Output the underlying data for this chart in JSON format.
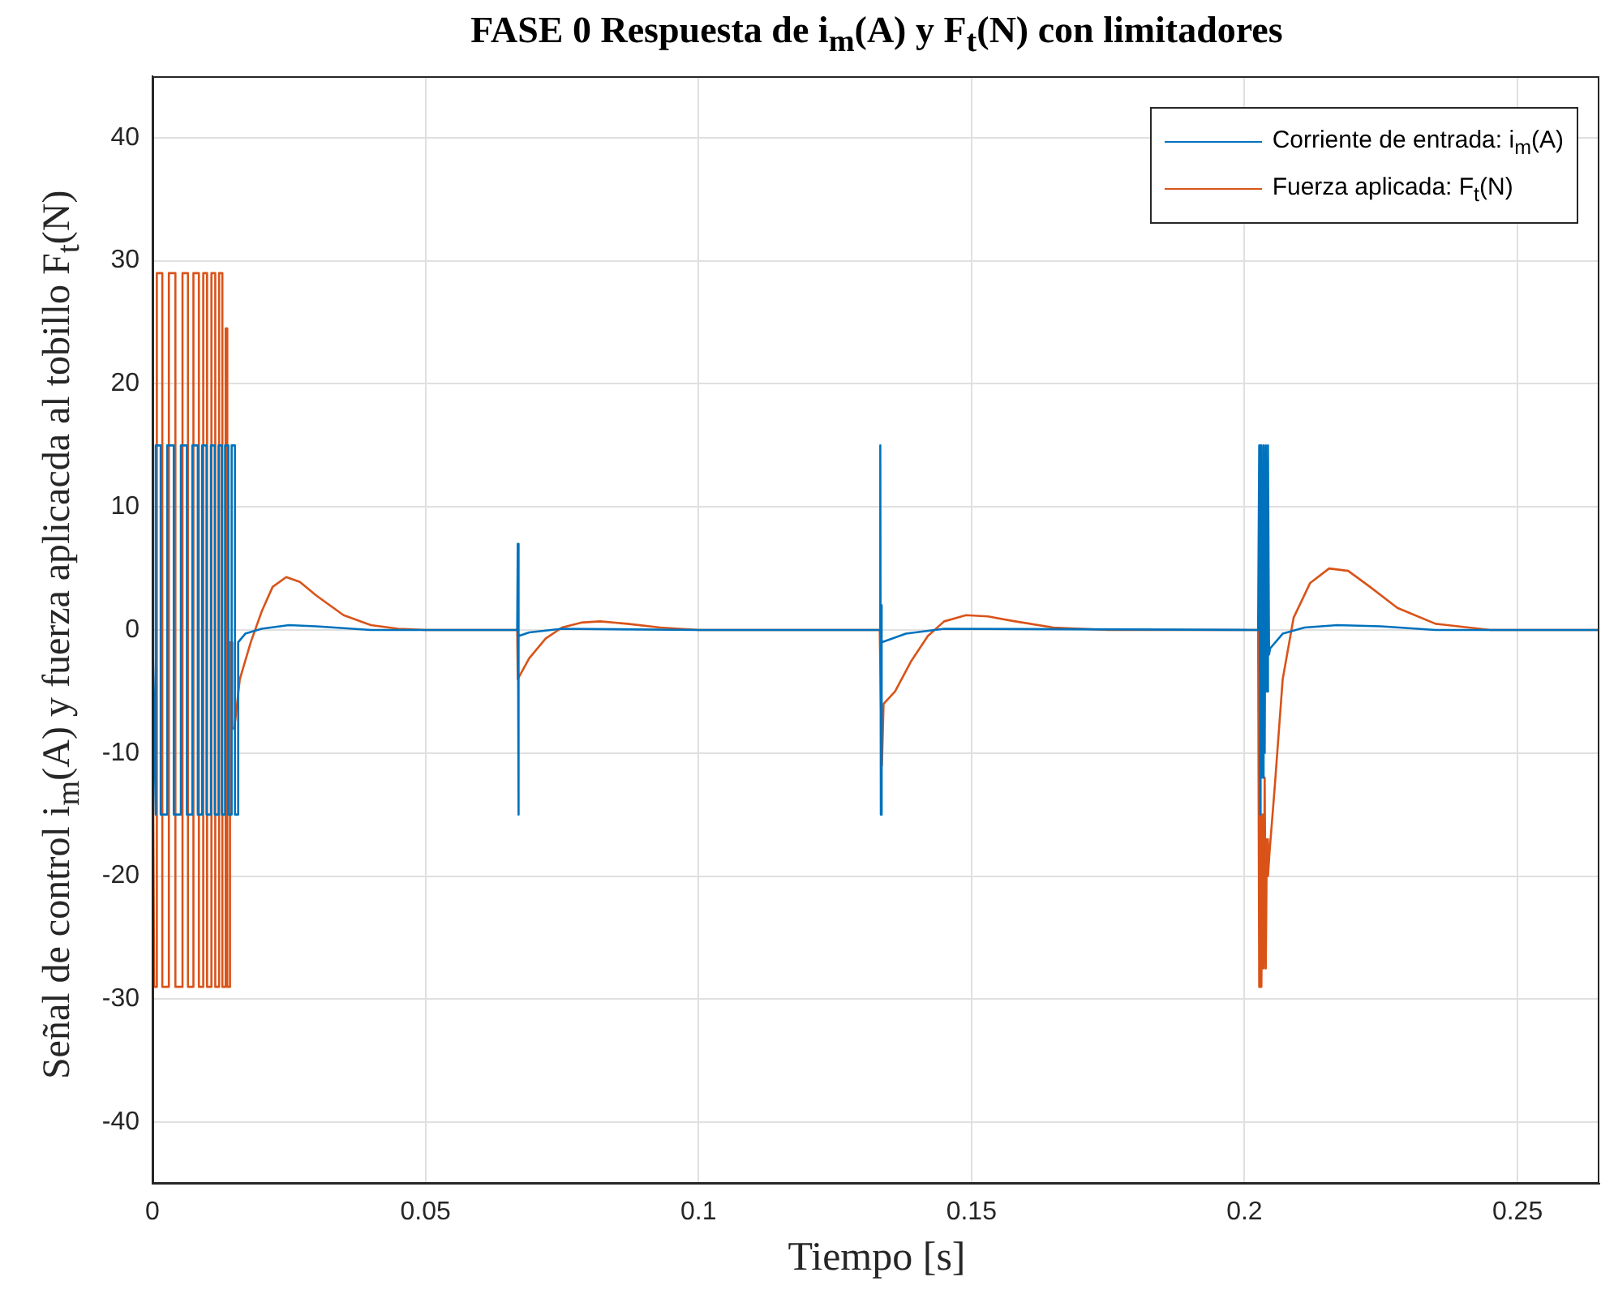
{
  "chart_data": {
    "type": "line",
    "title": "FASE 0 Respuesta de i$_{m}$(A) y F$_{t}$(N) con limitadores",
    "xlabel": "Tiempo [s]",
    "ylabel": "Señal de control i$_{m}$(A) y fuerza aplicacda al tobillo F$_{t}$(N)",
    "xlim": [
      0,
      0.265
    ],
    "xticks": [
      0,
      0.05,
      0.1,
      0.15,
      0.2,
      0.25
    ],
    "ylim": [
      -45,
      45
    ],
    "yticks": [
      -40,
      -30,
      -20,
      -10,
      0,
      10,
      20,
      30,
      40
    ],
    "grid": true,
    "legend": "top right",
    "marker": "none",
    "line_style": "solid",
    "series": [
      {
        "name": "Corriente de entrada: i$_{m}$(A)",
        "color": "#0072bd",
        "x": [
          0,
          0.0003,
          0.0006,
          0.0006,
          0.0015,
          0.0015,
          0.0027,
          0.0027,
          0.0039,
          0.0039,
          0.0052,
          0.0052,
          0.0063,
          0.0063,
          0.0073,
          0.0073,
          0.0083,
          0.0083,
          0.0091,
          0.0091,
          0.0099,
          0.0099,
          0.0107,
          0.0107,
          0.0114,
          0.0114,
          0.0121,
          0.0121,
          0.0127,
          0.0127,
          0.0133,
          0.0133,
          0.0139,
          0.0139,
          0.0145,
          0.0145,
          0.0151,
          0.0151,
          0.0157,
          0.0157,
          0.017,
          0.02,
          0.025,
          0.03,
          0.04,
          0.05,
          0.0668,
          0.0669,
          0.067,
          0.0671,
          0.069,
          0.075,
          0.1,
          0.1332,
          0.1333,
          0.1334,
          0.1335,
          0.1336,
          0.138,
          0.145,
          0.2025,
          0.2027,
          0.2029,
          0.2031,
          0.2033,
          0.2035,
          0.2037,
          0.2039,
          0.2041,
          0.2043,
          0.2045,
          0.2047,
          0.207,
          0.211,
          0.217,
          0.225,
          0.235,
          0.265
        ],
        "values": [
          0,
          -7,
          -15,
          15,
          15,
          -15,
          -15,
          15,
          15,
          -15,
          -15,
          15,
          15,
          -15,
          -15,
          15,
          15,
          -15,
          -15,
          15,
          15,
          -15,
          -15,
          15,
          15,
          -15,
          -15,
          15,
          15,
          -15,
          -15,
          15,
          15,
          -15,
          -15,
          15,
          15,
          -15,
          -15,
          -1,
          -0.3,
          0.1,
          0.4,
          0.3,
          0,
          0,
          0,
          7,
          -15,
          -0.5,
          -0.2,
          0.1,
          0,
          0,
          15,
          -15,
          2,
          -1,
          -0.3,
          0.1,
          0,
          15,
          -15,
          15,
          -12,
          15,
          -10,
          15,
          -5,
          15,
          -2,
          -1.5,
          -0.3,
          0.2,
          0.4,
          0.3,
          0,
          0
        ]
      },
      {
        "name": "Fuerza aplicada: F$_{t}$(N)",
        "color": "#d95319",
        "x": [
          0,
          0.0003,
          0.0008,
          0.0008,
          0.0018,
          0.0018,
          0.003,
          0.003,
          0.0042,
          0.0042,
          0.0055,
          0.0055,
          0.0065,
          0.0065,
          0.0075,
          0.0075,
          0.0085,
          0.0085,
          0.0093,
          0.0093,
          0.01,
          0.01,
          0.0108,
          0.0108,
          0.0115,
          0.0115,
          0.0122,
          0.0122,
          0.0128,
          0.0128,
          0.0134,
          0.0134,
          0.0137,
          0.0137,
          0.0142,
          0.0142,
          0.0146,
          0.0146,
          0.015,
          0.016,
          0.018,
          0.02,
          0.022,
          0.0245,
          0.027,
          0.03,
          0.035,
          0.04,
          0.045,
          0.05,
          0.0668,
          0.0669,
          0.069,
          0.072,
          0.075,
          0.0785,
          0.082,
          0.087,
          0.093,
          0.1,
          0.1332,
          0.1336,
          0.1339,
          0.136,
          0.139,
          0.142,
          0.145,
          0.149,
          0.153,
          0.158,
          0.165,
          0.175,
          0.2025,
          0.2027,
          0.2029,
          0.2031,
          0.2033,
          0.2035,
          0.2037,
          0.2039,
          0.2041,
          0.2043,
          0.2046,
          0.2055,
          0.207,
          0.209,
          0.212,
          0.2155,
          0.219,
          0.223,
          0.228,
          0.235,
          0.245,
          0.265
        ],
        "values": [
          0,
          -29,
          -29,
          29,
          29,
          -29,
          -29,
          29,
          29,
          -29,
          -29,
          29,
          29,
          -29,
          -29,
          29,
          29,
          -29,
          -29,
          29,
          29,
          -29,
          -29,
          29,
          29,
          -29,
          -29,
          29,
          29,
          -29,
          -29,
          24.5,
          24.5,
          -29,
          -29,
          -1,
          -1,
          -8,
          -8,
          -4,
          -1,
          1.5,
          3.5,
          4.3,
          3.9,
          2.8,
          1.2,
          0.4,
          0.1,
          0,
          0,
          -4,
          -2.3,
          -0.7,
          0.2,
          0.6,
          0.7,
          0.5,
          0.2,
          0,
          0,
          -11,
          -6,
          -5,
          -2.5,
          -0.5,
          0.7,
          1.2,
          1.1,
          0.7,
          0.2,
          0,
          0,
          -29,
          -10,
          -29,
          -15,
          -27.5,
          -12,
          -27.5,
          -17,
          -20,
          -18,
          -13,
          -4,
          1,
          3.8,
          5,
          4.8,
          3.5,
          1.8,
          0.5,
          0,
          0
        ]
      }
    ]
  }
}
